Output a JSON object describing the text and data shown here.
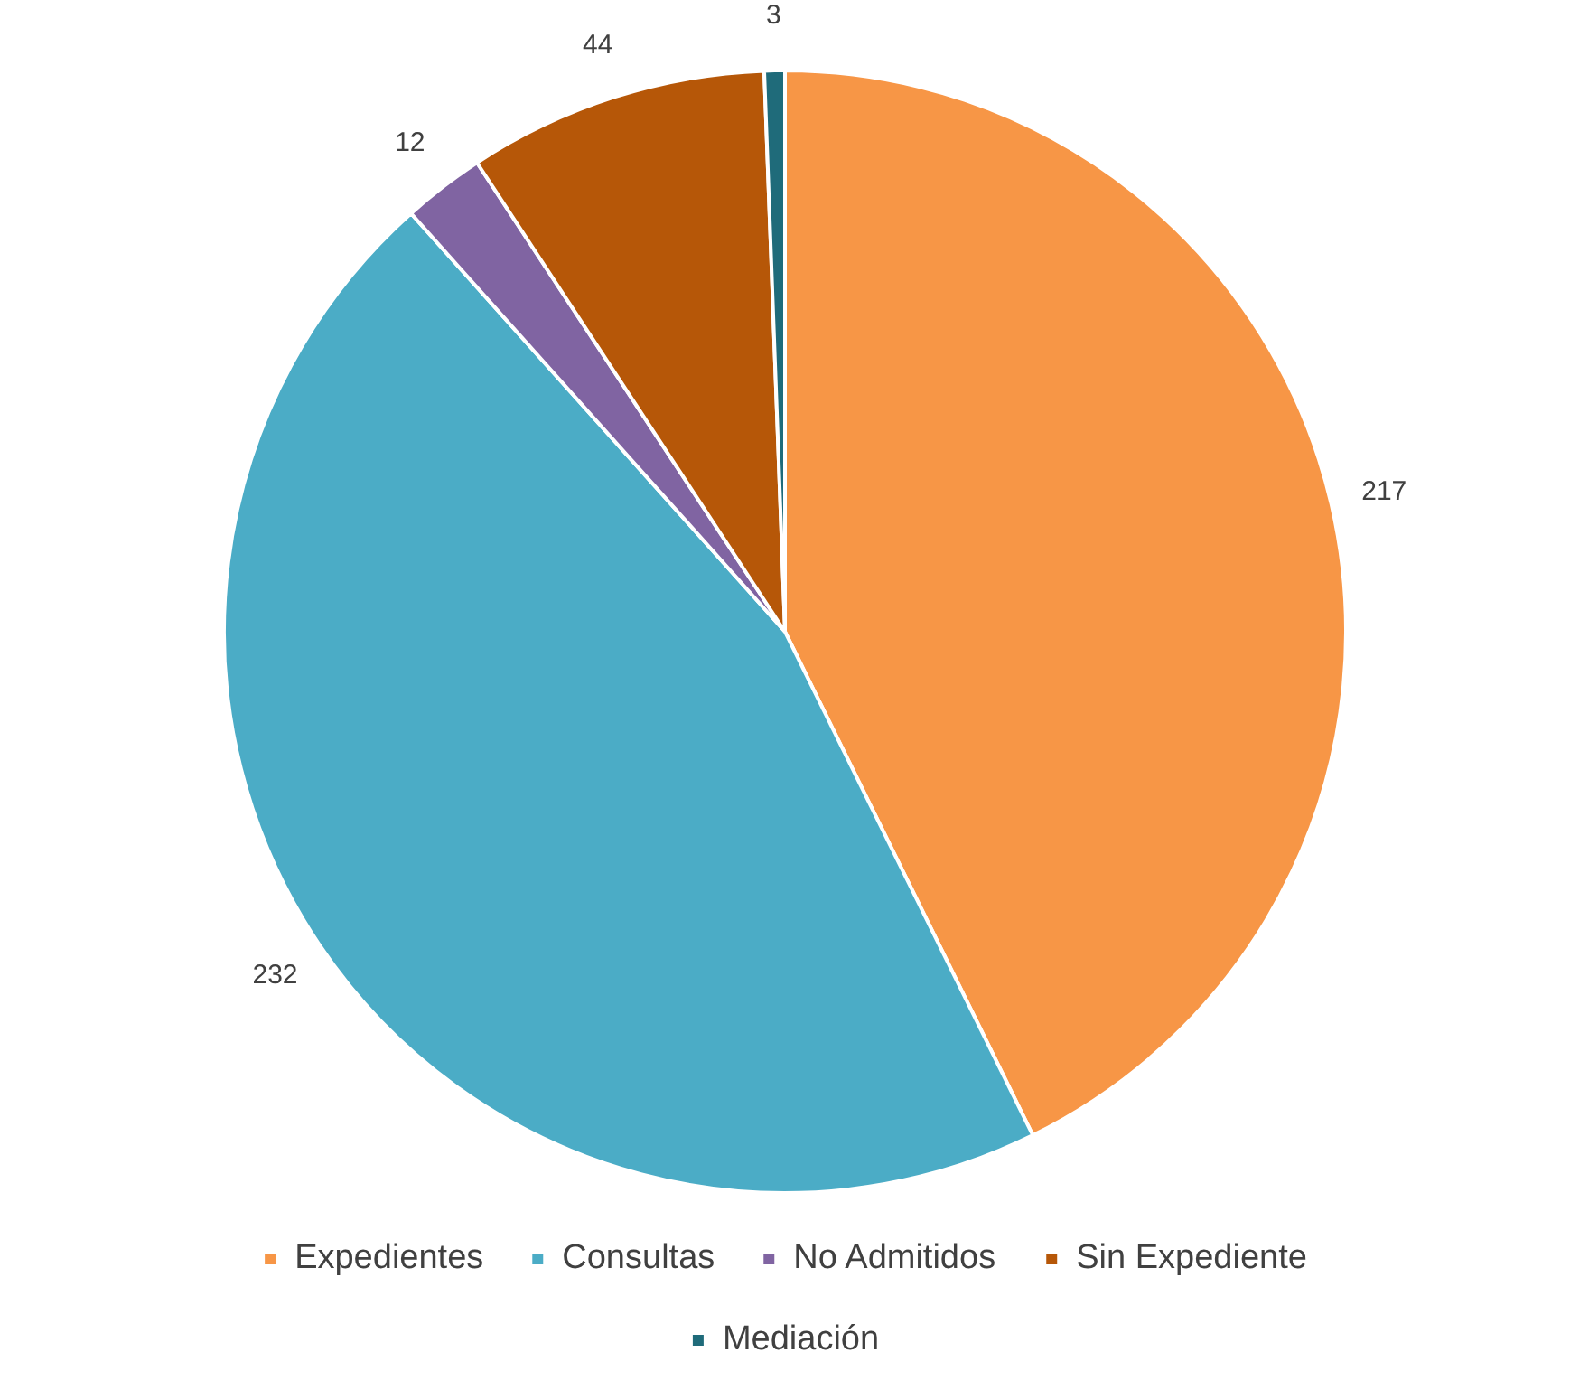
{
  "chart_data": {
    "type": "pie",
    "categories": [
      "Expedientes",
      "Consultas",
      "No Admitidos",
      "Sin Expediente",
      "Mediación"
    ],
    "values": [
      217,
      232,
      12,
      44,
      3
    ],
    "colors": [
      "#f79646",
      "#4bacc6",
      "#8064a2",
      "#b65708",
      "#1f6b7a"
    ],
    "data_labels": true,
    "legend": "bottom"
  }
}
